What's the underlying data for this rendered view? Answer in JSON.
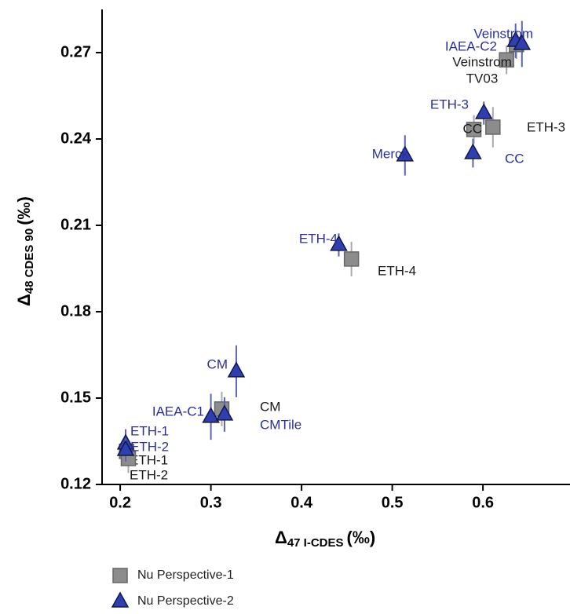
{
  "chart_data": {
    "type": "scatter",
    "x_label": {
      "main": "Δ",
      "sub": "47 I-CDES",
      "unit": "(‰)"
    },
    "y_label": {
      "main": "Δ",
      "sub": "48 CDES 90",
      "unit": "(‰)"
    },
    "xlim": [
      0.18,
      0.696
    ],
    "ylim": [
      0.12,
      0.285
    ],
    "xticks": [
      0.2,
      0.3,
      0.4,
      0.5,
      0.6
    ],
    "yticks": [
      0.12,
      0.15,
      0.18,
      0.21,
      0.24,
      0.27
    ],
    "legend": "bottom-left",
    "series": [
      {
        "name": "Nu Perspective-1",
        "marker": "square",
        "color": "#8c8c8c",
        "label_color": "#1a1a1a",
        "x": [
          0.207,
          0.209,
          0.312,
          0.455,
          0.59,
          0.611,
          0.626,
          0.637
        ],
        "values": [
          0.1315,
          0.129,
          0.1462,
          0.1983,
          0.2433,
          0.2441,
          0.2675,
          0.2728
        ],
        "errors": [
          0.004,
          0.005,
          0.006,
          0.006,
          0.005,
          0.007,
          0.005,
          0.005
        ],
        "labels": [
          "ETH-1",
          "ETH-2",
          "CM",
          "ETH-4",
          "CC",
          "ETH-3",
          [
            "Veinstrom",
            "TV03"
          ],
          null
        ]
      },
      {
        "name": "Nu Perspective-2",
        "marker": "triangle",
        "color": "#2f3fae",
        "label_color": "#2a2f9a",
        "x": [
          0.206,
          0.206,
          0.3,
          0.315,
          0.328,
          0.441,
          0.514,
          0.589,
          0.601,
          0.636,
          0.643
        ],
        "values": [
          0.1342,
          0.132,
          0.1435,
          0.1443,
          0.1593,
          0.2032,
          0.2343,
          0.2351,
          0.249,
          0.2741,
          0.273
        ],
        "errors": [
          0.005,
          0.004,
          0.008,
          0.006,
          0.009,
          0.004,
          0.007,
          0.005,
          0.004,
          0.006,
          0.008
        ],
        "labels": [
          "ETH-1",
          "ETH-2",
          "IAEA-C1",
          "CMTile",
          "CM",
          "ETH-4",
          "Merck",
          "CC",
          "ETH-3",
          "IAEA-C2",
          "Veinstrom"
        ]
      }
    ]
  }
}
